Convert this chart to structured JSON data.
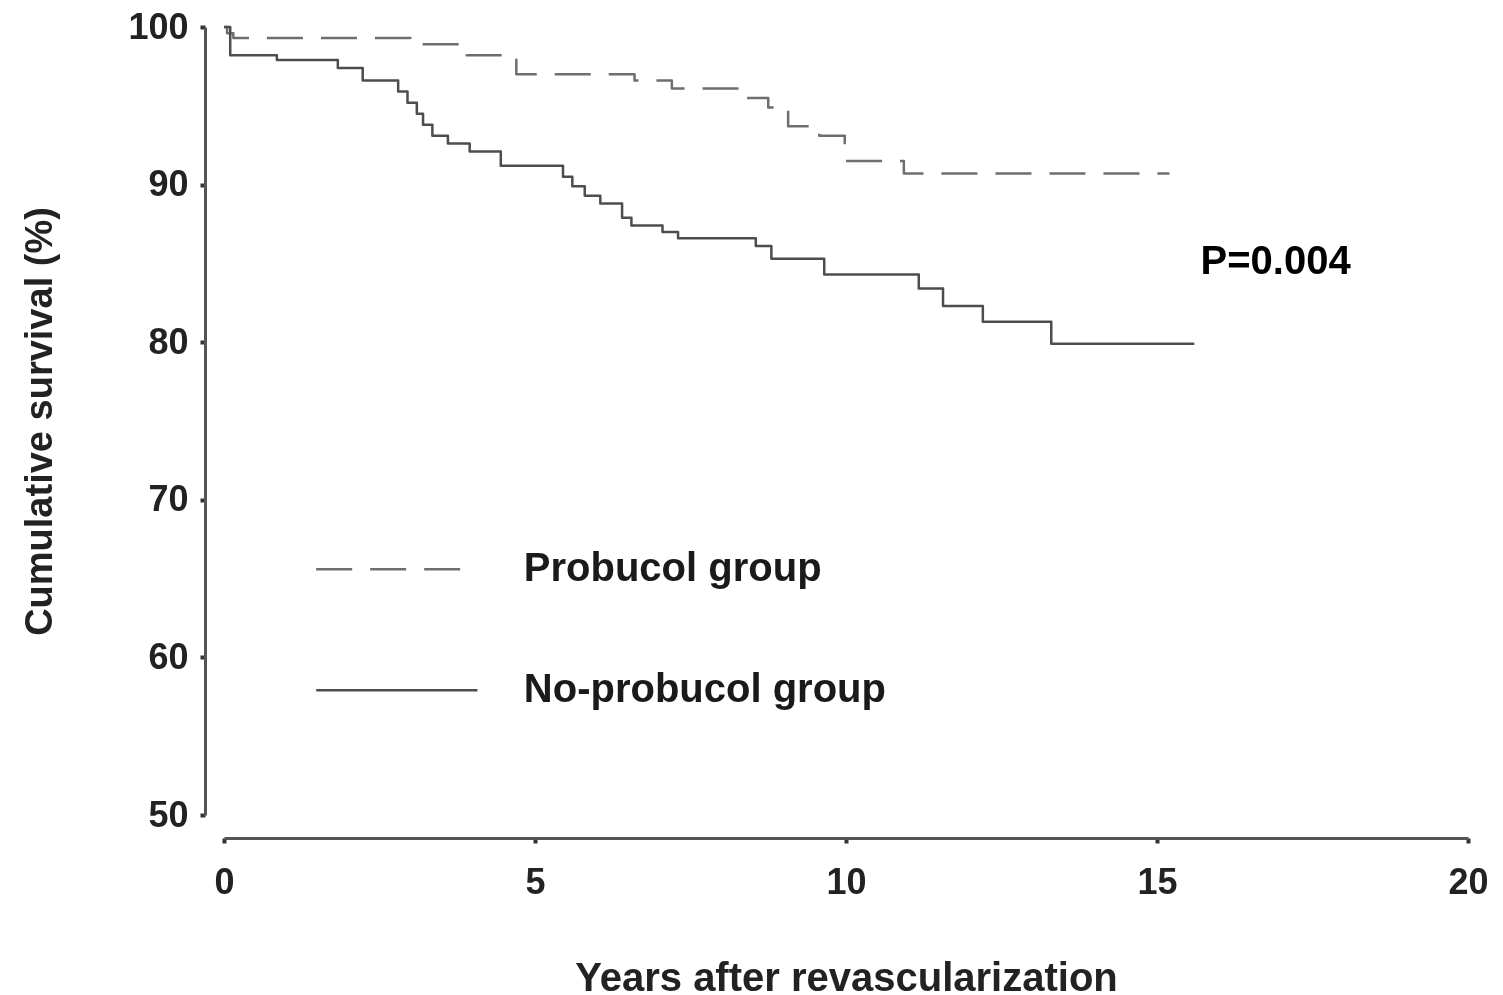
{
  "chart_data": {
    "type": "step",
    "xlabel": "Years after revascularization",
    "ylabel": "Cumulative survival (%)",
    "xlim": [
      0,
      20
    ],
    "xticks": [
      0,
      5,
      10,
      15,
      20
    ],
    "ylim": [
      50,
      100
    ],
    "yticks": [
      50,
      60,
      70,
      80,
      90,
      100
    ],
    "legend": "bottom left",
    "annotations": [
      "P=0.004"
    ],
    "series": [
      {
        "name": "Probucol group",
        "color": "#6e6e6e",
        "line_style": "dashed",
        "x": [
          0,
          0.05,
          0.15,
          3.0,
          3.9,
          4.7,
          6.6,
          7.2,
          8.3,
          8.75,
          9.07,
          9.57,
          9.98,
          10.93,
          15.2
        ],
        "values": [
          100,
          99.6,
          99.3,
          98.9,
          98.2,
          97.0,
          96.6,
          96.1,
          95.5,
          94.9,
          93.7,
          93.1,
          91.5,
          90.7,
          90.7
        ]
      },
      {
        "name": "No-probucol group",
        "color": "#4d4d4d",
        "line_style": "solid",
        "x": [
          0,
          0.1,
          0.85,
          1.83,
          2.23,
          2.8,
          2.95,
          3.1,
          3.2,
          3.35,
          3.6,
          3.95,
          4.45,
          5.45,
          5.6,
          5.8,
          6.05,
          6.4,
          6.55,
          7.05,
          7.3,
          8.55,
          8.8,
          9.65,
          11.17,
          11.56,
          12.2,
          13.3,
          15.6
        ],
        "values": [
          100,
          98.2,
          97.9,
          97.4,
          96.6,
          95.9,
          95.2,
          94.5,
          93.8,
          93.1,
          92.6,
          92.1,
          91.2,
          90.5,
          89.9,
          89.3,
          88.8,
          87.9,
          87.4,
          87.0,
          86.6,
          86.1,
          85.3,
          84.3,
          83.4,
          82.3,
          81.3,
          79.9,
          79.9
        ]
      }
    ]
  }
}
